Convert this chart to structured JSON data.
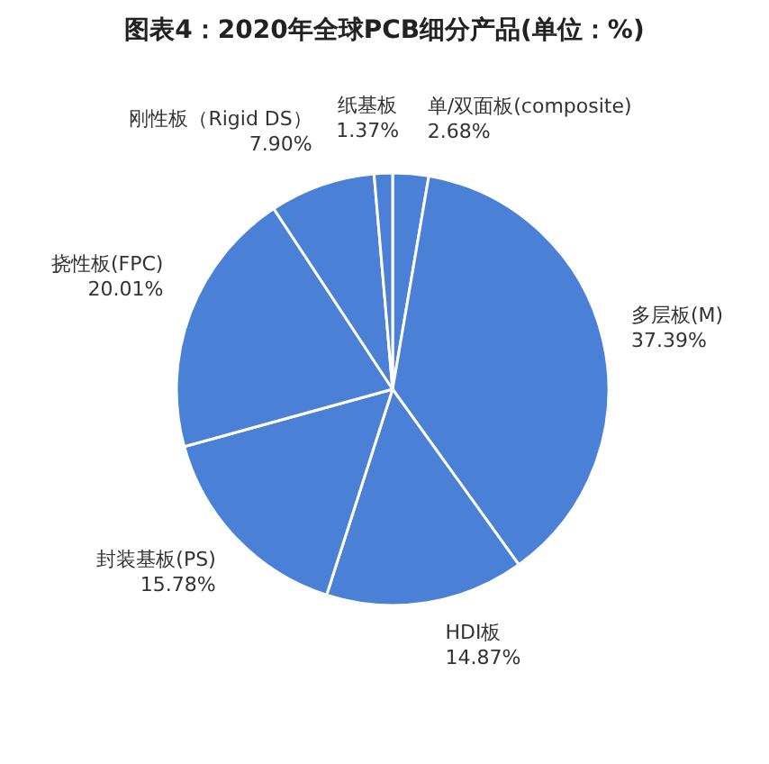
{
  "chart_data": {
    "type": "pie",
    "title": "图表4：2020年全球PCB细分产品(单位：%)",
    "categories": [
      "单/双面板(composite)",
      "多层板(M)",
      "HDI板",
      "封装基板(PS)",
      "挠性板(FPC)",
      "刚性板（Rigid DS）",
      "纸基板"
    ],
    "values": [
      2.68,
      37.39,
      14.87,
      15.78,
      20.01,
      7.9,
      1.37
    ],
    "value_labels": [
      "2.68%",
      "37.39%",
      "14.87%",
      "15.78%",
      "20.01%",
      "7.90%",
      "1.37%"
    ],
    "colors": [
      "#4a80d6",
      "#4a80d6",
      "#4a80d6",
      "#4a80d6",
      "#4a80d6",
      "#4a80d6",
      "#4a80d6"
    ],
    "legend": false
  }
}
